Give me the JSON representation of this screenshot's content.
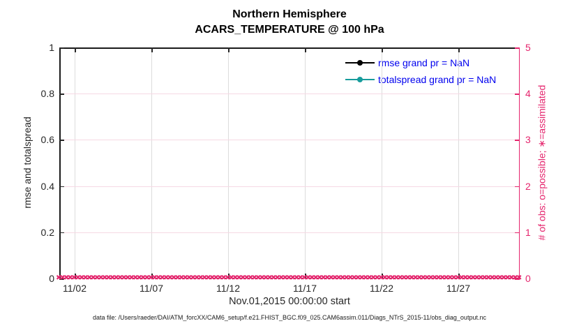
{
  "figure": {
    "title": "Northern Hemisphere",
    "subtitle": "ACARS_TEMPERATURE @ 100 hPa",
    "xlabel": "Nov.01,2015 00:00:00 start",
    "caption": "data file: /Users/raeder/DAI/ATM_forcXX/CAM6_setup/f.e21.FHIST_BGC.f09_025.CAM6assim.011/Diags_NTrS_2015-11/obs_diag_output.nc"
  },
  "legend": {
    "text_color": "#0000ee",
    "items": [
      {
        "label": "rmse grand pr = NaN",
        "color": "#000000"
      },
      {
        "label": "totalspread grand pr = NaN",
        "color": "#179c9c"
      }
    ]
  },
  "chart_data": {
    "type": "line",
    "title": "Northern Hemisphere",
    "subtitle": "ACARS_TEMPERATURE @ 100 hPa",
    "xlabel": "Nov.01,2015 00:00:00 start",
    "left_axis": {
      "label": "rmse and totalspread",
      "range": [
        0,
        1
      ],
      "ticks": [
        0,
        0.2,
        0.4,
        0.6,
        0.8,
        1
      ],
      "color": "#262626"
    },
    "right_axis": {
      "label": "# of obs: o=possible; ∗=assimilated",
      "range": [
        0,
        5
      ],
      "ticks": [
        0,
        1,
        2,
        3,
        4,
        5
      ],
      "color": "#e5256d"
    },
    "x_axis": {
      "range_days": [
        0,
        30
      ],
      "tick_days": [
        1,
        6,
        11,
        16,
        21,
        26
      ],
      "tick_labels": [
        "11/02",
        "11/07",
        "11/12",
        "11/17",
        "11/22",
        "11/27"
      ],
      "start": "Nov.01,2015 00:00:00"
    },
    "series": [
      {
        "name": "rmse",
        "legend": "rmse grand pr = NaN",
        "color": "#000000",
        "grand_value": "NaN",
        "values": "NaN"
      },
      {
        "name": "totalspread",
        "legend": "totalspread grand pr = NaN",
        "color": "#179c9c",
        "grand_value": "NaN",
        "values": "NaN"
      }
    ],
    "obs_band": {
      "description": "# of obs markers (o=possible, x=assimilated), all equal to 0 along the full x-axis",
      "axis": "right",
      "value": 0,
      "count": 120,
      "marker": "✖",
      "color": "#e5256d"
    },
    "grid": {
      "vertical_color": "#dcdcdc",
      "horizontal_color": "#f6d9e4",
      "shown": true
    }
  }
}
